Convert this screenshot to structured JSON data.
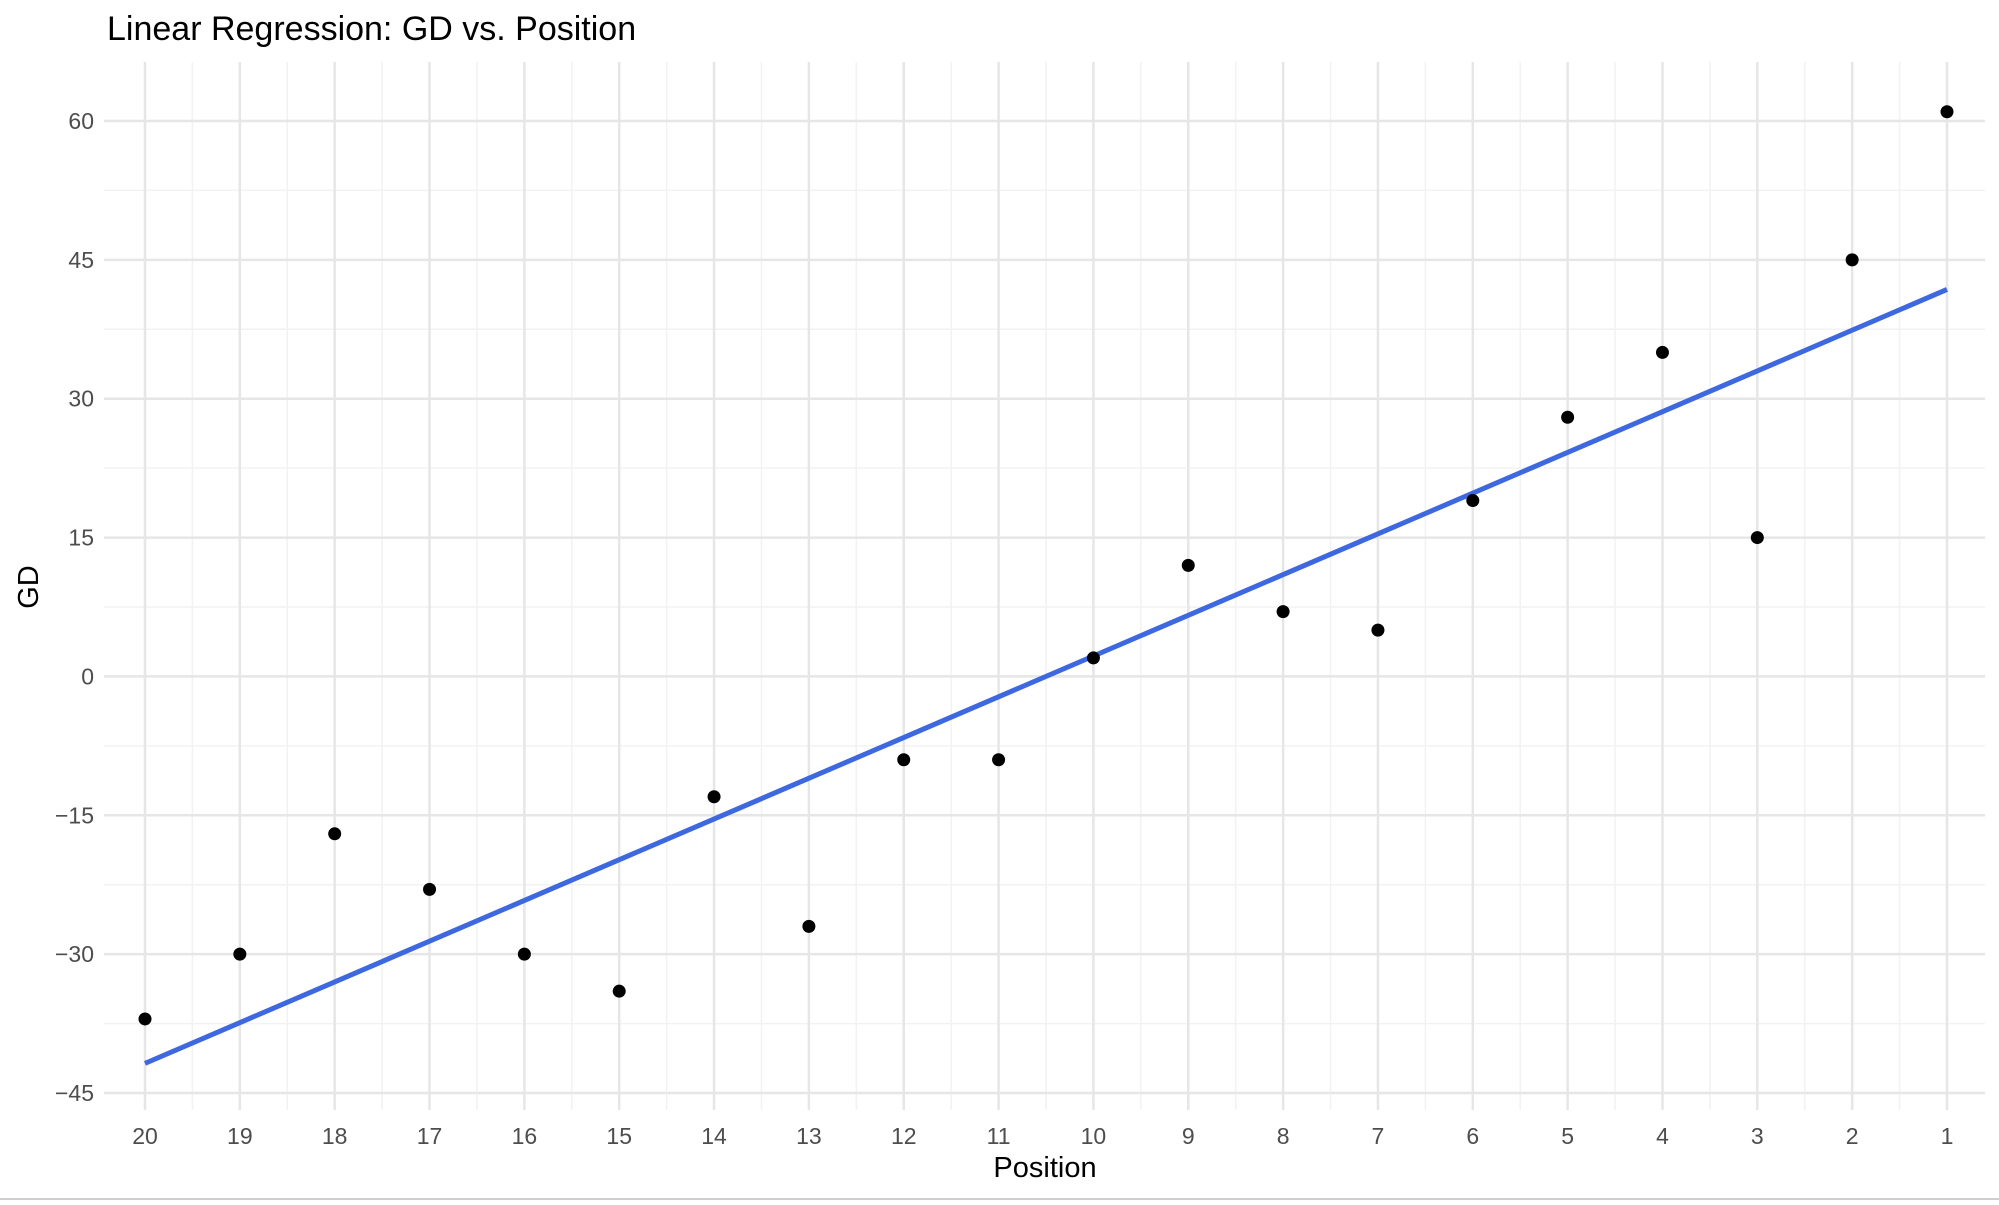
{
  "chart_data": {
    "type": "scatter",
    "title": "Linear Regression: GD vs. Position",
    "xlabel": "Position",
    "ylabel": "GD",
    "x_reversed": true,
    "xlim": [
      20,
      1
    ],
    "ylim": [
      -45,
      60
    ],
    "x_ticks": [
      20,
      19,
      18,
      17,
      16,
      15,
      14,
      13,
      12,
      11,
      10,
      9,
      8,
      7,
      6,
      5,
      4,
      3,
      2,
      1
    ],
    "y_ticks": [
      -45,
      -30,
      -15,
      0,
      15,
      30,
      45,
      60
    ],
    "y_tick_labels": [
      "−45",
      "−30",
      "−15",
      "0",
      "15",
      "30",
      "45",
      "60"
    ],
    "grid": true,
    "series": [
      {
        "type": "scatter",
        "color": "#000000",
        "x": [
          20,
          19,
          18,
          17,
          16,
          15,
          14,
          13,
          12,
          11,
          10,
          9,
          8,
          7,
          6,
          5,
          4,
          3,
          2,
          1
        ],
        "y": [
          -37,
          -30,
          -17,
          -23,
          -30,
          -34,
          -13,
          -27,
          -9,
          -9,
          2,
          12,
          7,
          5,
          19,
          28,
          35,
          15,
          45,
          61
        ]
      },
      {
        "type": "line",
        "color": "#3d68e0",
        "x": [
          20,
          1
        ],
        "y": [
          -41.8,
          41.8
        ]
      }
    ]
  }
}
